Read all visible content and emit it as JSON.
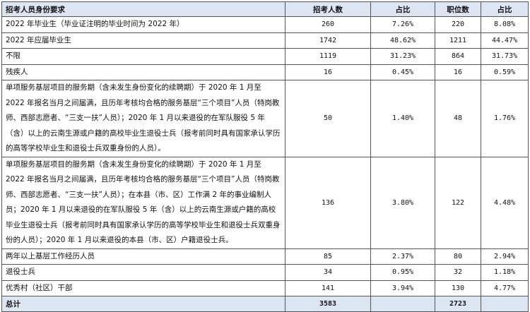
{
  "headers": [
    "招考人员身份要求",
    "招考人数",
    "占比",
    "职位数",
    "占比"
  ],
  "rows": [
    {
      "identity": "2022 年毕业生（毕业证注明的毕业时间为 2022 年）",
      "applicants": "260",
      "applicants_pct": "7.26%",
      "positions": "220",
      "positions_pct": "8.08%"
    },
    {
      "identity": "2022 年应届毕业生",
      "applicants": "1742",
      "applicants_pct": "48.62%",
      "positions": "1211",
      "positions_pct": "44.47%"
    },
    {
      "identity": "不限",
      "applicants": "1119",
      "applicants_pct": "31.23%",
      "positions": "864",
      "positions_pct": "31.73%"
    },
    {
      "identity": "残疾人",
      "applicants": "16",
      "applicants_pct": "0.45%",
      "positions": "16",
      "positions_pct": "0.59%"
    },
    {
      "identity": "单项服务基层项目的服务期（含未发生身份变化的续聘期）于 2020 年 1 月至 2022 年报名当月之间届满，且历年考核均合格的服务基层“三个项目”人员（特岗教师、西部志愿者、“三支一扶”人员）；2020 年 1 月以来退役的在军队服役 5 年（含）以上的云南生源或户籍的高校毕业生退役士兵（报考前同时具有国家承认学历的高等学校毕业生和退役士兵双重身份的人员）。",
      "applicants": "50",
      "applicants_pct": "1.40%",
      "positions": "48",
      "positions_pct": "1.76%"
    },
    {
      "identity": "单项服务基层项目的服务期（含未发生身份变化的续聘期）于 2020 年 1 月至 2022 年报名当月之间届满，且历年考核均合格的服务基层“三个项目”人员（特岗教师、西部志愿者、“三支一扶”人员）；在本县（市、区）工作满 2 年的事业编制人员；2020 年 1 月以来退役的在军队服役 5 年（含）以上的云南生源或户籍的高校毕业生退役士兵（报考前同时具有国家承认学历的高等学校毕业生和退役士兵双重身份的人员）；2020 年 1 月以来退役的本县（市、区）户籍退役士兵。",
      "applicants": "136",
      "applicants_pct": "3.80%",
      "positions": "122",
      "positions_pct": "4.48%"
    },
    {
      "identity": "两年以上基层工作经历人员",
      "applicants": "85",
      "applicants_pct": "2.37%",
      "positions": "80",
      "positions_pct": "2.94%"
    },
    {
      "identity": "退役士兵",
      "applicants": "34",
      "applicants_pct": "0.95%",
      "positions": "32",
      "positions_pct": "1.18%"
    },
    {
      "identity": "优秀村（社区）干部",
      "applicants": "141",
      "applicants_pct": "3.94%",
      "positions": "130",
      "positions_pct": "4.77%"
    }
  ],
  "total": {
    "label": "总计",
    "applicants": "3583",
    "positions": "2723"
  }
}
